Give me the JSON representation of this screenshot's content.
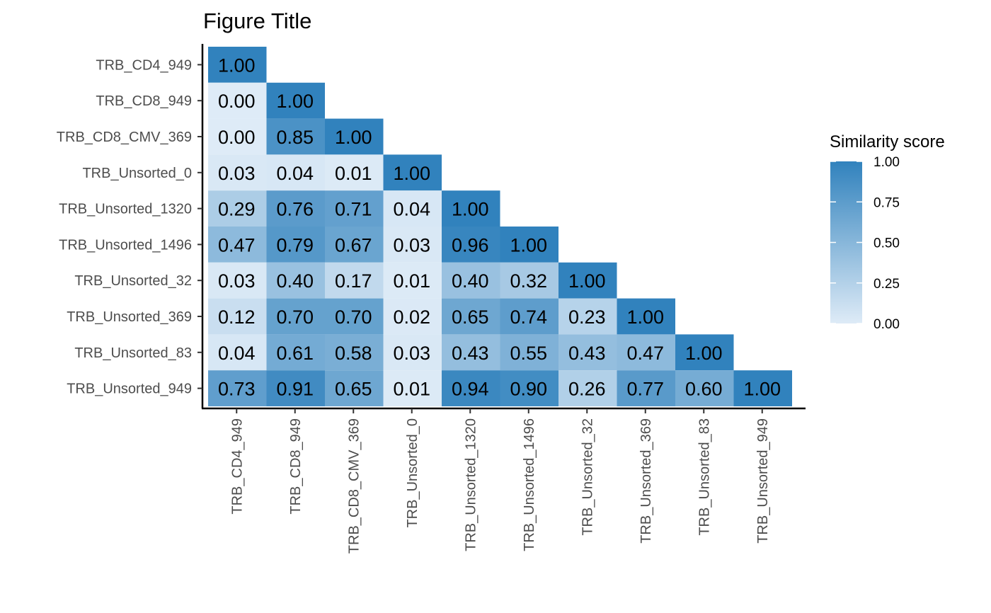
{
  "chart_data": {
    "type": "heatmap",
    "title": "Figure Title",
    "xlabel": "",
    "ylabel": "",
    "x_categories": [
      "TRB_CD4_949",
      "TRB_CD8_949",
      "TRB_CD8_CMV_369",
      "TRB_Unsorted_0",
      "TRB_Unsorted_1320",
      "TRB_Unsorted_1496",
      "TRB_Unsorted_32",
      "TRB_Unsorted_369",
      "TRB_Unsorted_83",
      "TRB_Unsorted_949"
    ],
    "y_categories": [
      "TRB_CD4_949",
      "TRB_CD8_949",
      "TRB_CD8_CMV_369",
      "TRB_Unsorted_0",
      "TRB_Unsorted_1320",
      "TRB_Unsorted_1496",
      "TRB_Unsorted_32",
      "TRB_Unsorted_369",
      "TRB_Unsorted_83",
      "TRB_Unsorted_949"
    ],
    "values": [
      [
        1.0
      ],
      [
        0.0,
        1.0
      ],
      [
        0.0,
        0.85,
        1.0
      ],
      [
        0.03,
        0.04,
        0.01,
        1.0
      ],
      [
        0.29,
        0.76,
        0.71,
        0.04,
        1.0
      ],
      [
        0.47,
        0.79,
        0.67,
        0.03,
        0.96,
        1.0
      ],
      [
        0.03,
        0.4,
        0.17,
        0.01,
        0.4,
        0.32,
        1.0
      ],
      [
        0.12,
        0.7,
        0.7,
        0.02,
        0.65,
        0.74,
        0.23,
        1.0
      ],
      [
        0.04,
        0.61,
        0.58,
        0.03,
        0.43,
        0.55,
        0.43,
        0.47,
        1.0
      ],
      [
        0.73,
        0.91,
        0.65,
        0.01,
        0.94,
        0.9,
        0.26,
        0.77,
        0.6,
        1.0
      ]
    ],
    "value_labels": [
      [
        "1.00"
      ],
      [
        "0.00",
        "1.00"
      ],
      [
        "0.00",
        "0.85",
        "1.00"
      ],
      [
        "0.03",
        "0.04",
        "0.01",
        "1.00"
      ],
      [
        "0.29",
        "0.76",
        "0.71",
        "0.04",
        "1.00"
      ],
      [
        "0.47",
        "0.79",
        "0.67",
        "0.03",
        "0.96",
        "1.00"
      ],
      [
        "0.03",
        "0.40",
        "0.17",
        "0.01",
        "0.40",
        "0.32",
        "1.00"
      ],
      [
        "0.12",
        "0.70",
        "0.70",
        "0.02",
        "0.65",
        "0.74",
        "0.23",
        "1.00"
      ],
      [
        "0.04",
        "0.61",
        "0.58",
        "0.03",
        "0.43",
        "0.55",
        "0.43",
        "0.47",
        "1.00"
      ],
      [
        "0.73",
        "0.91",
        "0.65",
        "0.01",
        "0.94",
        "0.90",
        "0.26",
        "0.77",
        "0.60",
        "1.00"
      ]
    ],
    "color_scale": {
      "low": "#deebf7",
      "high": "#3182bd",
      "range": [
        0,
        1
      ]
    },
    "legend": {
      "title": "Similarity score",
      "ticks": [
        0.0,
        0.25,
        0.5,
        0.75,
        1.0
      ],
      "tick_labels": [
        "0.00",
        "0.25",
        "0.50",
        "0.75",
        "1.00"
      ],
      "position": "right"
    },
    "grid": false
  }
}
